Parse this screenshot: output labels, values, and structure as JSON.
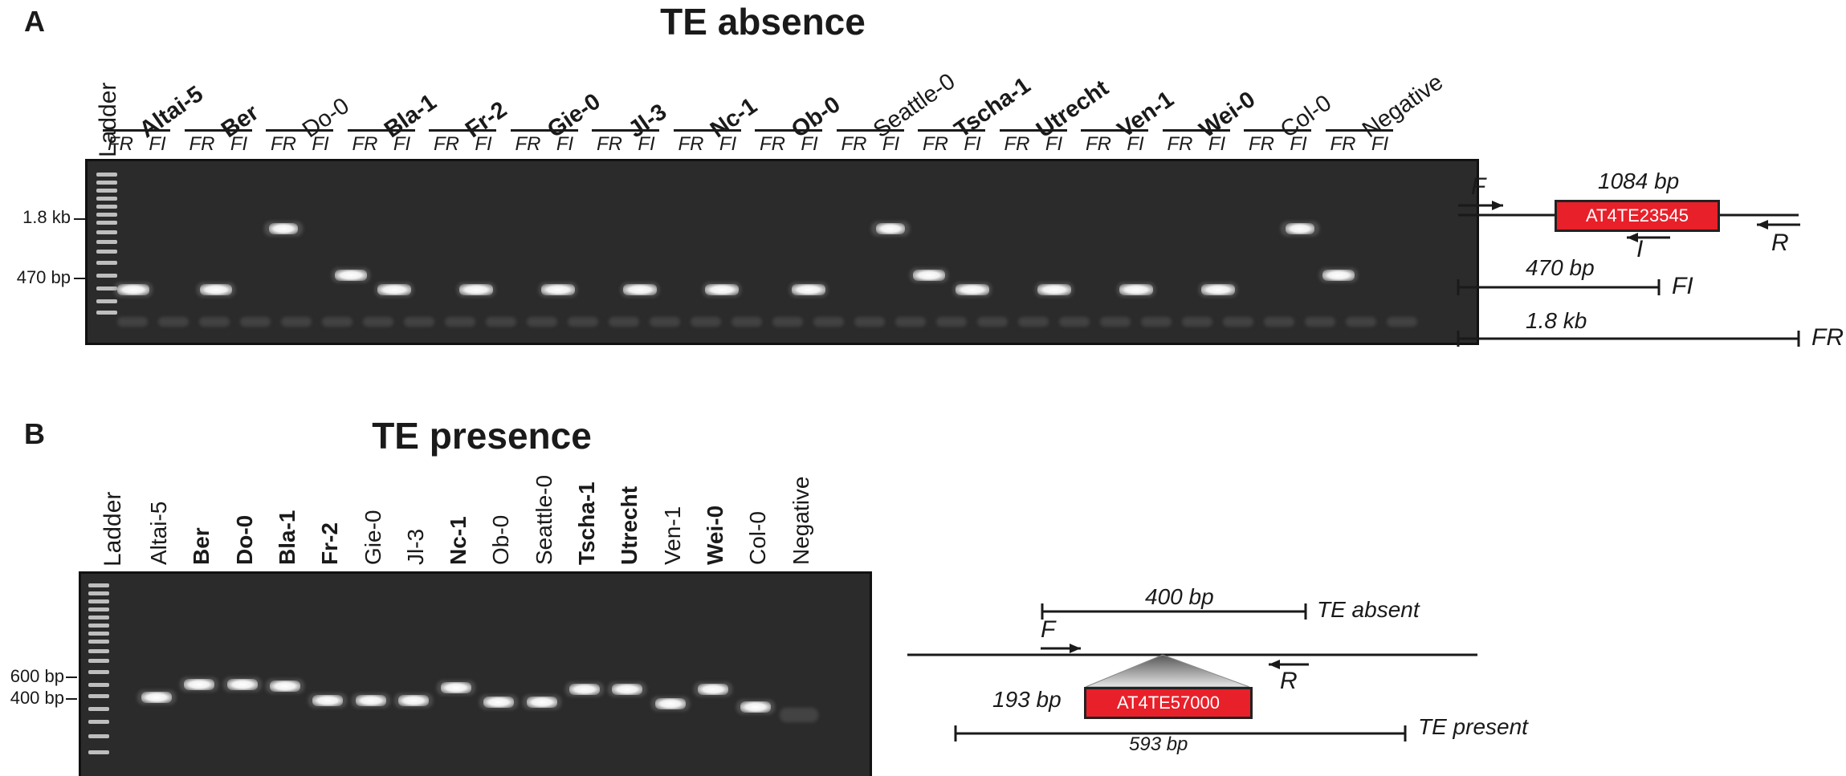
{
  "panel_a": {
    "letter": "A",
    "title": "TE absence",
    "ladder_label": "Ladder",
    "lanes": [
      {
        "name": "Altai-5",
        "bold": true
      },
      {
        "name": "Ber",
        "bold": true
      },
      {
        "name": "Do-0",
        "bold": false
      },
      {
        "name": "Bla-1",
        "bold": true
      },
      {
        "name": "Fr-2",
        "bold": true
      },
      {
        "name": "Gie-0",
        "bold": true
      },
      {
        "name": "Jl-3",
        "bold": true
      },
      {
        "name": "Nc-1",
        "bold": true
      },
      {
        "name": "Ob-0",
        "bold": true
      },
      {
        "name": "Seattle-0",
        "bold": false
      },
      {
        "name": "Tscha-1",
        "bold": true
      },
      {
        "name": "Utrecht",
        "bold": true
      },
      {
        "name": "Ven-1",
        "bold": true
      },
      {
        "name": "Wei-0",
        "bold": true
      },
      {
        "name": "Col-0",
        "bold": false
      },
      {
        "name": "Negative",
        "bold": false
      }
    ],
    "sub_lane_labels": [
      "FR",
      "FI"
    ],
    "size_markers": [
      "1.8 kb",
      "470 bp"
    ],
    "diagram": {
      "te_name": "AT4TE23545",
      "te_size": "1084 bp",
      "primer_f": "F",
      "primer_r": "R",
      "primer_i": "I",
      "fi_size": "470 bp",
      "fi_label": "FI",
      "fr_size": "1.8 kb",
      "fr_label": "FR"
    }
  },
  "panel_b": {
    "letter": "B",
    "title": "TE presence",
    "ladder_label": "Ladder",
    "lanes": [
      {
        "name": "Altai-5",
        "bold": false
      },
      {
        "name": "Ber",
        "bold": true
      },
      {
        "name": "Do-0",
        "bold": true
      },
      {
        "name": "Bla-1",
        "bold": true
      },
      {
        "name": "Fr-2",
        "bold": true
      },
      {
        "name": "Gie-0",
        "bold": false
      },
      {
        "name": "Jl-3",
        "bold": false
      },
      {
        "name": "Nc-1",
        "bold": true
      },
      {
        "name": "Ob-0",
        "bold": false
      },
      {
        "name": "Seattle-0",
        "bold": false
      },
      {
        "name": "Tscha-1",
        "bold": true
      },
      {
        "name": "Utrecht",
        "bold": true
      },
      {
        "name": "Ven-1",
        "bold": false
      },
      {
        "name": "Wei-0",
        "bold": true
      },
      {
        "name": "Col-0",
        "bold": false
      },
      {
        "name": "Negative",
        "bold": false
      }
    ],
    "size_markers": [
      "600 bp",
      "400 bp"
    ],
    "diagram": {
      "absent_size": "400 bp",
      "absent_label": "TE absent",
      "primer_f": "F",
      "primer_r": "R",
      "te_name": "AT4TE57000",
      "te_size": "193 bp",
      "present_size": "593 bp",
      "present_label": "TE present"
    }
  },
  "colors": {
    "te_box": "#e8202a",
    "gel": "#2b2b2b"
  }
}
